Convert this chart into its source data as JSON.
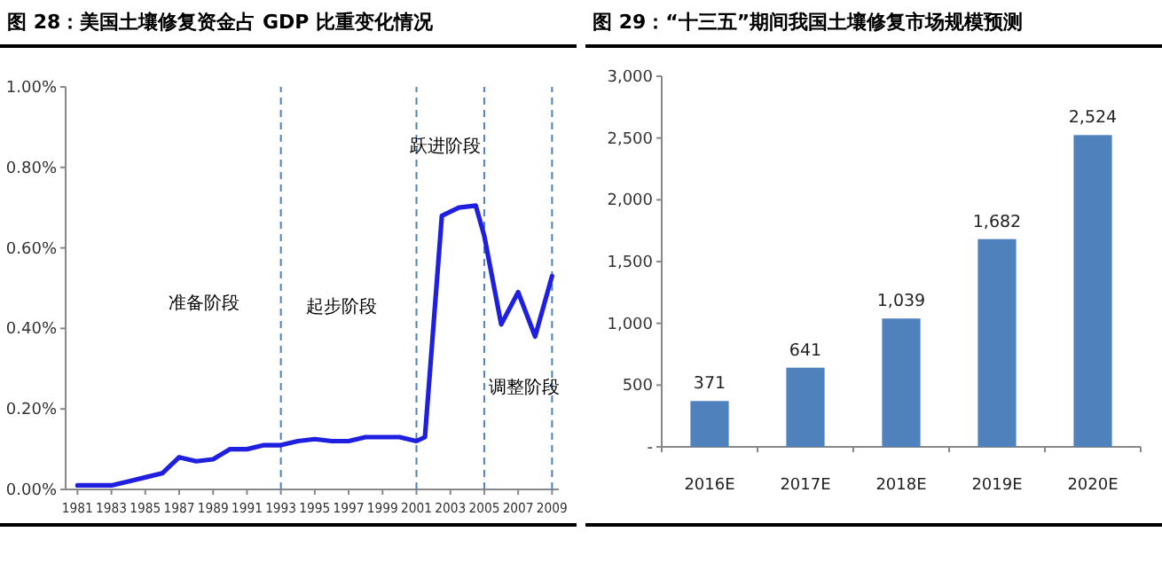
{
  "chart_data": [
    {
      "type": "line",
      "title": "图 28：美国土壤修复资金占 GDP 比重变化情况",
      "x": [
        1981,
        1982,
        1983,
        1984,
        1985,
        1986,
        1987,
        1988,
        1989,
        1990,
        1991,
        1992,
        1993,
        1994,
        1995,
        1996,
        1997,
        1998,
        1999,
        2000,
        2001,
        2001.5,
        2002.5,
        2003.5,
        2004.5,
        2005,
        2006,
        2007,
        2008,
        2009
      ],
      "series": [
        {
          "color": "#1f1fe0",
          "values": [
            0.01,
            0.01,
            0.01,
            0.02,
            0.03,
            0.04,
            0.08,
            0.07,
            0.075,
            0.1,
            0.1,
            0.11,
            0.11,
            0.12,
            0.125,
            0.12,
            0.12,
            0.13,
            0.13,
            0.13,
            0.12,
            0.13,
            0.68,
            0.7,
            0.705,
            0.63,
            0.41,
            0.49,
            0.38,
            0.53
          ]
        }
      ],
      "xlim": [
        1980.3,
        2009.4
      ],
      "ylim": [
        0,
        1
      ],
      "xticks": [
        1981,
        1983,
        1985,
        1987,
        1989,
        1991,
        1993,
        1995,
        1997,
        1999,
        2001,
        2003,
        2005,
        2007,
        2009
      ],
      "yticks": [
        {
          "value": 0,
          "label": "0.00%"
        },
        {
          "value": 0.2,
          "label": "0.20%"
        },
        {
          "value": 0.4,
          "label": "0.40%"
        },
        {
          "value": 0.6,
          "label": "0.60%"
        },
        {
          "value": 0.8,
          "label": "0.80%"
        },
        {
          "value": 1,
          "label": "1.00%"
        }
      ],
      "ref_lines": [
        {
          "axis": "x",
          "value": 1993,
          "color": "#4f81bd",
          "line_style": "dashed"
        },
        {
          "axis": "x",
          "value": 2001,
          "color": "#4f81bd",
          "line_style": "dashed"
        },
        {
          "axis": "x",
          "value": 2005,
          "color": "#4f81bd",
          "line_style": "dashed"
        },
        {
          "axis": "x",
          "value": 2009,
          "color": "#4f81bd",
          "line_style": "dashed"
        }
      ],
      "annotations": [
        "准备阶段",
        "起步阶段",
        "跃进阶段",
        "调整阶段"
      ]
    },
    {
      "type": "bar",
      "title": "图 29：“十三五”期间我国土壤修复市场规模预测",
      "categories": [
        "2016E",
        "2017E",
        "2018E",
        "2019E",
        "2020E"
      ],
      "values": [
        371,
        641,
        1039,
        1682,
        2524
      ],
      "color": "#4f81bd",
      "value_labels": [
        "371",
        "641",
        "1,039",
        "1,682",
        "2,524"
      ],
      "ylim": [
        0,
        3000
      ],
      "yticks": [
        {
          "value": 0,
          "label": "-"
        },
        {
          "value": 500,
          "label": "500"
        },
        {
          "value": 1000,
          "label": "1,000"
        },
        {
          "value": 1500,
          "label": "1,500"
        },
        {
          "value": 2000,
          "label": "2,000"
        },
        {
          "value": 2500,
          "label": "2,500"
        },
        {
          "value": 3000,
          "label": "3,000"
        }
      ],
      "grid": false
    }
  ]
}
